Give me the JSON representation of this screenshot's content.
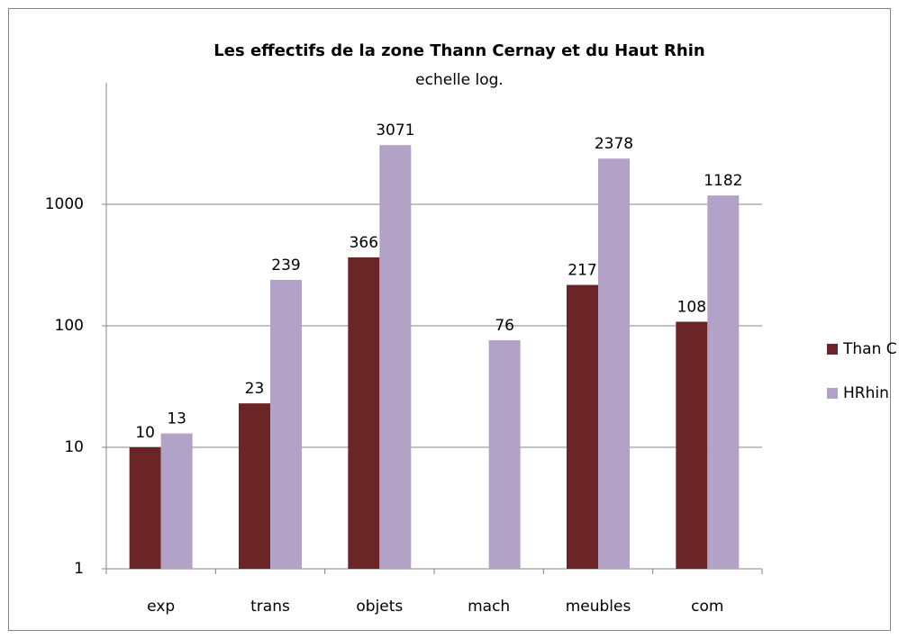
{
  "chart_data": {
    "type": "bar",
    "title": "Les effectifs de la zone Thann Cernay et du Haut Rhin",
    "subtitle": "echelle log.",
    "categories": [
      "exp",
      "trans",
      "objets",
      "mach",
      "meubles",
      "com"
    ],
    "series": [
      {
        "name": "Than C",
        "color": "#6b2527",
        "values": [
          10,
          23,
          366,
          null,
          217,
          108
        ]
      },
      {
        "name": "HRhin",
        "color": "#b3a2c7",
        "values": [
          13,
          239,
          3071,
          76,
          2378,
          1182
        ]
      }
    ],
    "ylim": [
      1,
      10000
    ],
    "yticks": [
      1,
      10,
      100,
      1000
    ],
    "log_scale": true,
    "grid": true,
    "legend": "right"
  }
}
